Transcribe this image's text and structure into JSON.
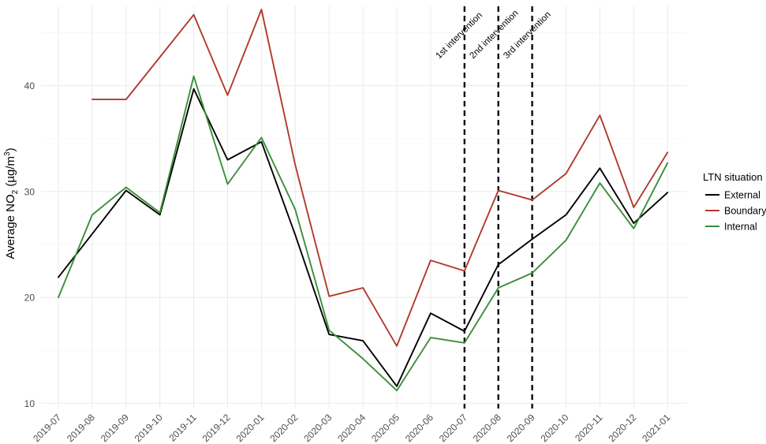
{
  "chart_data": {
    "type": "line",
    "title": "",
    "xlabel": "",
    "ylabel_parts": [
      "Average NO",
      "2",
      " (µg/m",
      "3",
      ")"
    ],
    "categories": [
      "2019-07",
      "2019-08",
      "2019-09",
      "2019-10",
      "2019-11",
      "2019-12",
      "2020-01",
      "2020-02",
      "2020-03",
      "2020-04",
      "2020-05",
      "2020-06",
      "2020-07",
      "2020-08",
      "2020-09",
      "2020-10",
      "2020-11",
      "2020-12",
      "2021-01"
    ],
    "ylim": [
      9.5,
      47.5
    ],
    "yticks": [
      10,
      20,
      30,
      40
    ],
    "grid": true,
    "legend": {
      "title": "LTN situation",
      "position": "right"
    },
    "series": [
      {
        "name": "External",
        "color": "#000000",
        "values": [
          21.9,
          26.0,
          30.1,
          27.8,
          39.7,
          33.0,
          34.7,
          25.9,
          16.5,
          15.9,
          11.6,
          18.5,
          16.8,
          23.1,
          25.5,
          27.8,
          32.2,
          27.0,
          29.9
        ]
      },
      {
        "name": "Boundary",
        "color": "#b03a2e",
        "values": [
          null,
          38.7,
          38.7,
          42.7,
          46.7,
          39.1,
          47.2,
          32.5,
          20.1,
          20.9,
          15.4,
          23.5,
          22.5,
          30.1,
          29.2,
          31.7,
          37.2,
          28.5,
          33.7
        ]
      },
      {
        "name": "Internal",
        "color": "#3a8f3a",
        "values": [
          20.0,
          27.8,
          30.4,
          28.0,
          40.9,
          30.7,
          35.1,
          28.3,
          16.9,
          14.2,
          11.2,
          16.2,
          15.7,
          20.9,
          22.3,
          25.4,
          30.8,
          26.5,
          32.7
        ]
      }
    ],
    "annotations": [
      {
        "label": "1st intervention",
        "x": "2020-07"
      },
      {
        "label": "2nd intervention",
        "x": "2020-08"
      },
      {
        "label": "3rd intervention",
        "x": "2020-09"
      }
    ]
  }
}
